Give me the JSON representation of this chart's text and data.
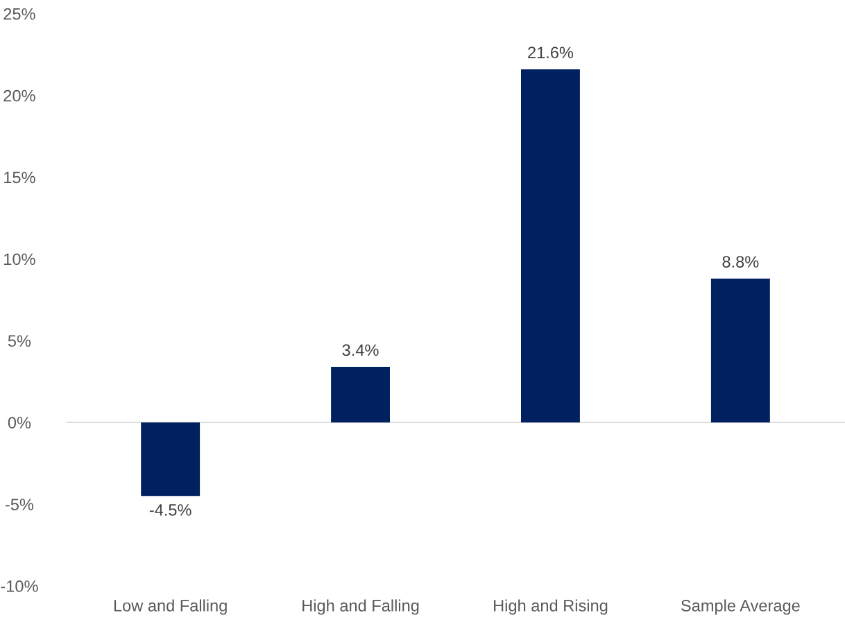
{
  "chart_data": {
    "type": "bar",
    "categories": [
      "Low and Falling",
      "High and Falling",
      "High and Rising",
      "Sample Average"
    ],
    "values": [
      -4.5,
      3.4,
      21.6,
      8.8
    ],
    "color": "#002060",
    "value_labels": [
      "-4.5%",
      "3.4%",
      "21.6%",
      "8.8%"
    ],
    "ylim": [
      -10,
      25
    ],
    "yticks": [
      {
        "value": -10,
        "label": "-10%"
      },
      {
        "value": -5,
        "label": "-5%"
      },
      {
        "value": 0,
        "label": "0%"
      },
      {
        "value": 5,
        "label": "5%"
      },
      {
        "value": 10,
        "label": "10%"
      },
      {
        "value": 15,
        "label": "15%"
      },
      {
        "value": 20,
        "label": "20%"
      },
      {
        "value": 25,
        "label": "25%"
      }
    ],
    "ref_lines": [
      {
        "axis": "y",
        "value": 0,
        "color": "#d9d9d9"
      }
    ],
    "grid": false,
    "legend": false
  }
}
